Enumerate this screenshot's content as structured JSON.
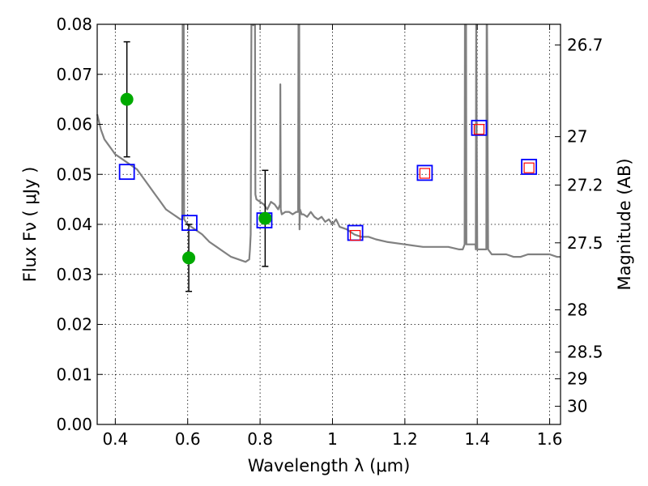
{
  "chart_data": {
    "type": "scatter",
    "title": "",
    "xlabel": "Wavelength  λ (μm)",
    "ylabel": "Flux  Fν  ( μJy )",
    "y2label": "Magnitude (AB)",
    "xlim": [
      0.35,
      1.63
    ],
    "ylim": [
      0.0,
      0.08
    ],
    "grid": true,
    "x_ticks": [
      0.4,
      0.6,
      0.8,
      1.0,
      1.2,
      1.4,
      1.6
    ],
    "x_tick_labels": [
      "0.4",
      "0.6",
      "0.8",
      "1",
      "1.2",
      "1.4",
      "1.6"
    ],
    "y_ticks": [
      0.0,
      0.01,
      0.02,
      0.03,
      0.04,
      0.05,
      0.06,
      0.07,
      0.08
    ],
    "y_tick_labels": [
      "0.00",
      "0.01",
      "0.02",
      "0.03",
      "0.04",
      "0.05",
      "0.06",
      "0.07",
      "0.08"
    ],
    "y2_ticks": [
      26.7,
      27,
      27.2,
      27.5,
      28,
      28.5,
      29,
      30
    ],
    "y2_tick_labels": [
      "26.7",
      "27",
      "27.2",
      "27.5",
      "28",
      "28.5",
      "29",
      "30"
    ],
    "series": [
      {
        "kind": "line",
        "color": "#808080",
        "x": [
          0.35,
          0.36,
          0.37,
          0.38,
          0.39,
          0.4,
          0.41,
          0.42,
          0.43,
          0.44,
          0.45,
          0.46,
          0.47,
          0.48,
          0.49,
          0.5,
          0.51,
          0.52,
          0.53,
          0.54,
          0.55,
          0.56,
          0.57,
          0.58,
          0.585,
          0.586,
          0.587,
          0.588,
          0.589,
          0.59,
          0.6,
          0.62,
          0.64,
          0.66,
          0.68,
          0.7,
          0.72,
          0.74,
          0.76,
          0.77,
          0.772,
          0.774,
          0.776,
          0.778,
          0.78,
          0.785,
          0.786,
          0.787,
          0.79,
          0.8,
          0.81,
          0.82,
          0.83,
          0.84,
          0.85,
          0.855,
          0.856,
          0.857,
          0.86,
          0.87,
          0.88,
          0.89,
          0.9,
          0.905,
          0.906,
          0.907,
          0.908,
          0.909,
          0.91,
          0.915,
          0.92,
          0.93,
          0.94,
          0.95,
          0.96,
          0.97,
          0.98,
          0.99,
          1.0,
          1.01,
          1.02,
          1.04,
          1.06,
          1.08,
          1.1,
          1.12,
          1.15,
          1.2,
          1.25,
          1.3,
          1.32,
          1.35,
          1.36,
          1.365,
          1.366,
          1.367,
          1.368,
          1.369,
          1.37,
          1.38,
          1.39,
          1.395,
          1.396,
          1.397,
          1.4,
          1.41,
          1.42,
          1.425,
          1.426,
          1.427,
          1.43,
          1.44,
          1.46,
          1.48,
          1.5,
          1.52,
          1.54,
          1.56,
          1.58,
          1.6,
          1.62,
          1.63
        ],
        "y": [
          0.062,
          0.059,
          0.057,
          0.056,
          0.055,
          0.054,
          0.0535,
          0.053,
          0.0525,
          0.052,
          0.0515,
          0.051,
          0.05,
          0.049,
          0.048,
          0.047,
          0.046,
          0.045,
          0.044,
          0.043,
          0.0425,
          0.042,
          0.0415,
          0.041,
          0.041,
          0.08,
          0.08,
          0.08,
          0.08,
          0.041,
          0.04,
          0.039,
          0.038,
          0.0365,
          0.0355,
          0.0345,
          0.0335,
          0.033,
          0.0325,
          0.033,
          0.035,
          0.038,
          0.08,
          0.08,
          0.08,
          0.08,
          0.08,
          0.046,
          0.045,
          0.0445,
          0.044,
          0.043,
          0.0445,
          0.044,
          0.043,
          0.044,
          0.068,
          0.043,
          0.042,
          0.0425,
          0.0425,
          0.042,
          0.0425,
          0.0425,
          0.08,
          0.08,
          0.08,
          0.039,
          0.043,
          0.042,
          0.042,
          0.0415,
          0.0425,
          0.0415,
          0.041,
          0.0415,
          0.0405,
          0.041,
          0.04,
          0.041,
          0.0395,
          0.039,
          0.038,
          0.0375,
          0.0375,
          0.037,
          0.0365,
          0.036,
          0.0355,
          0.0355,
          0.0355,
          0.035,
          0.035,
          0.036,
          0.08,
          0.08,
          0.08,
          0.08,
          0.036,
          0.036,
          0.036,
          0.036,
          0.035,
          0.08,
          0.035,
          0.035,
          0.035,
          0.035,
          0.08,
          0.08,
          0.035,
          0.034,
          0.034,
          0.034,
          0.0335,
          0.0335,
          0.034,
          0.034,
          0.034,
          0.034,
          0.0335,
          0.0335
        ]
      },
      {
        "kind": "errorbar-points",
        "color": "#00aa00",
        "x": [
          0.432,
          0.603,
          0.814
        ],
        "y": [
          0.065,
          0.0333,
          0.0412
        ],
        "yerr": [
          0.0115,
          0.0067,
          0.0096
        ]
      },
      {
        "kind": "blue-squares",
        "color": "#0000ff",
        "x": [
          0.432,
          0.605,
          0.812,
          1.063,
          1.255,
          1.405,
          1.543
        ],
        "y": [
          0.0505,
          0.0403,
          0.0408,
          0.0383,
          0.0503,
          0.0593,
          0.0515
        ]
      },
      {
        "kind": "red-squares",
        "color": "#ff0000",
        "x": [
          1.063,
          1.255,
          1.405,
          1.543
        ],
        "y": [
          0.0378,
          0.0502,
          0.059,
          0.0513
        ]
      }
    ]
  }
}
